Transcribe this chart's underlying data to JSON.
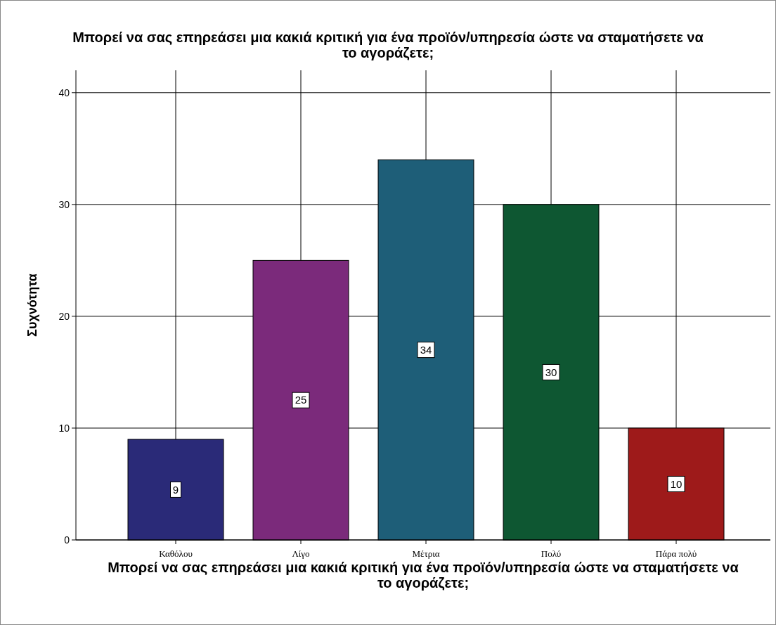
{
  "chart_data": {
    "type": "bar",
    "title": "Μπορεί να σας επηρεάσει μια κακιά κριτική για ένα προϊόν/υπηρεσία ώστε να σταματήσετε να το αγοράζετε;",
    "xlabel": "Μπορεί να σας επηρεάσει μια κακιά κριτική για ένα προϊόν/υπηρεσία ώστε να σταματήσετε να το αγοράζετε;",
    "ylabel": "Συχνότητα",
    "categories": [
      "Καθόλου",
      "Λίγο",
      "Μέτρια",
      "Πολύ",
      "Πάρα πολύ"
    ],
    "values": [
      9,
      25,
      34,
      30,
      10
    ],
    "colors": [
      "#2a2a78",
      "#7b2a7b",
      "#1e5e78",
      "#0e5732",
      "#9e1a1a"
    ],
    "ylim": [
      0,
      42
    ],
    "yticks": [
      0,
      10,
      20,
      30,
      40
    ],
    "grid": true,
    "data_labels": true
  }
}
